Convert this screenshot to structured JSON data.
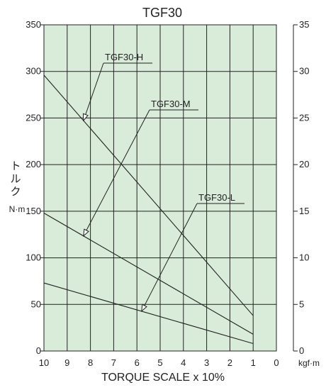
{
  "chart_data": {
    "type": "line",
    "title": "TGF30",
    "xlabel": "TORQUE SCALE x 10%",
    "ylabel_left_chars": [
      "ト",
      "ル",
      "ク"
    ],
    "ylabel_left_unit": "N·m",
    "ylabel_right_unit": "kgf·m",
    "x_ticks": [
      "10",
      "9",
      "8",
      "7",
      "6",
      "5",
      "4",
      "3",
      "2",
      "1",
      "0"
    ],
    "y_left_ticks": [
      "0",
      "50",
      "100",
      "150",
      "200",
      "250",
      "300",
      "350"
    ],
    "y_right_ticks": [
      "0",
      "5",
      "10",
      "15",
      "20",
      "25",
      "30",
      "35"
    ],
    "xlim": [
      10,
      0
    ],
    "ylim": [
      0,
      350
    ],
    "grid": true,
    "background_color": "#d9ecd9",
    "series": [
      {
        "name": "TGF30-H",
        "x": [
          10,
          1
        ],
        "y": [
          296,
          38
        ]
      },
      {
        "name": "TGF30-M",
        "x": [
          10,
          1
        ],
        "y": [
          148,
          18
        ]
      },
      {
        "name": "TGF30-L",
        "x": [
          10,
          1
        ],
        "y": [
          73,
          8
        ]
      }
    ]
  }
}
